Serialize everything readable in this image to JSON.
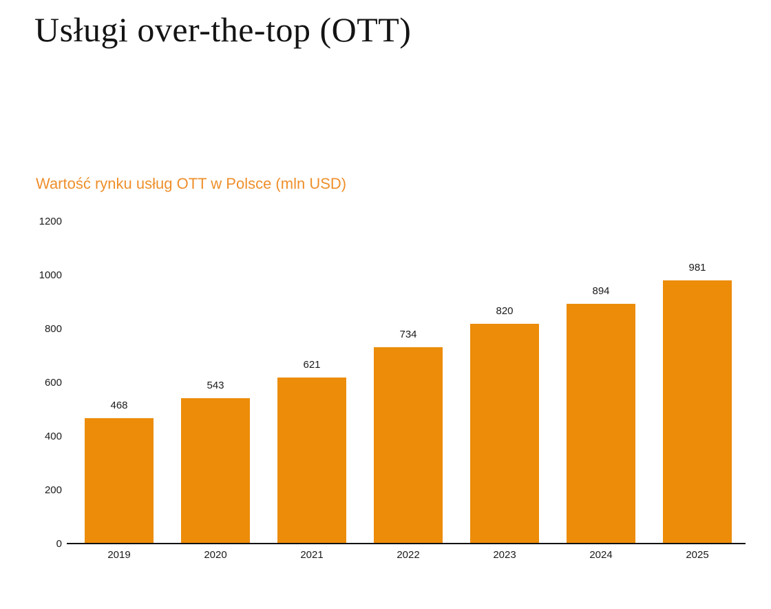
{
  "page": {
    "title": "Usługi over-the-top (OTT)"
  },
  "chart_data": {
    "type": "bar",
    "title": "Wartość rynku usług OTT w Polsce (mln USD)",
    "categories": [
      "2019",
      "2020",
      "2021",
      "2022",
      "2023",
      "2024",
      "2025"
    ],
    "values": [
      468,
      543,
      621,
      734,
      820,
      894,
      981
    ],
    "xlabel": "",
    "ylabel": "",
    "ylim": [
      0,
      1200
    ],
    "ytick_step": 200,
    "grid": false,
    "legend": "none",
    "value_labels": true
  },
  "colors": {
    "bar": "#EC8C08",
    "chart_title": "#EE8F2B",
    "title_text": "#141414",
    "tick_label": "#1a1a1a",
    "axis_line": "#111111",
    "background": "#ffffff"
  }
}
